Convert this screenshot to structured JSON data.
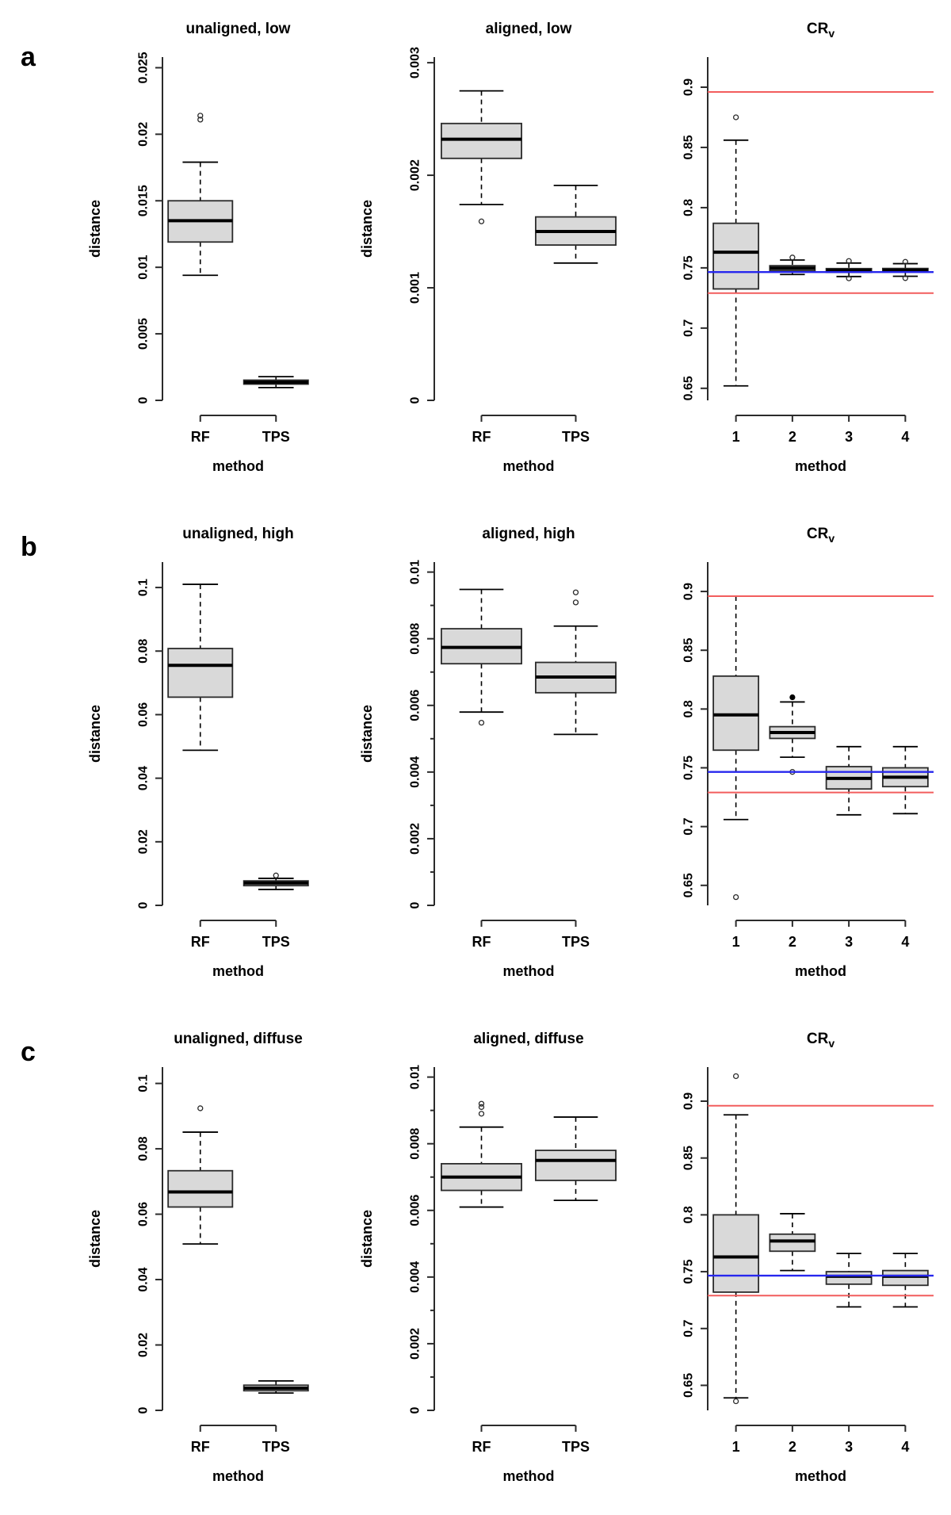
{
  "style": {
    "background": "#ffffff",
    "box_fill": "#d9d9d9",
    "box_border": "#2b2b2b",
    "median_color": "#000000",
    "axis_color": "#2b2b2b",
    "text_color": "#000000",
    "red": "#f25d5d",
    "blue": "#2727ee"
  },
  "row_labels": [
    "a",
    "b",
    "c"
  ],
  "chart_data": [
    {
      "type": "boxplot",
      "row": "a",
      "title": "unaligned, low",
      "title_sub": "",
      "ylabel": "distance",
      "xlabel": "method",
      "ylim": [
        0,
        0.0258
      ],
      "yticks": [
        0,
        0.005,
        0.01,
        0.015,
        0.02,
        0.025
      ],
      "ytick_labels": [
        "0",
        "0.005",
        "0.01",
        "0.015",
        "0.02",
        "0.025"
      ],
      "minor_yticks": [],
      "categories": [
        "RF",
        "TPS"
      ],
      "boxes": [
        {
          "category": "RF",
          "whisker_low": 0.0094,
          "q1": 0.0119,
          "median": 0.0135,
          "q3": 0.015,
          "whisker_high": 0.0179,
          "outliers": [
            0.0211,
            0.0214
          ],
          "filled_outliers": []
        },
        {
          "category": "TPS",
          "whisker_low": 0.00096,
          "q1": 0.00122,
          "median": 0.00136,
          "q3": 0.00152,
          "whisker_high": 0.00178,
          "outliers": [],
          "filled_outliers": []
        }
      ],
      "ref_lines": []
    },
    {
      "type": "boxplot",
      "row": "a",
      "title": "aligned, low",
      "title_sub": "",
      "ylabel": "distance",
      "xlabel": "method",
      "ylim": [
        0,
        0.00305
      ],
      "yticks": [
        0,
        0.001,
        0.002,
        0.003
      ],
      "ytick_labels": [
        "0",
        "0.001",
        "0.002",
        "0.003"
      ],
      "minor_yticks": [],
      "categories": [
        "RF",
        "TPS"
      ],
      "boxes": [
        {
          "category": "RF",
          "whisker_low": 0.00174,
          "q1": 0.00215,
          "median": 0.00232,
          "q3": 0.00246,
          "whisker_high": 0.00275,
          "outliers": [
            0.00159
          ],
          "filled_outliers": []
        },
        {
          "category": "TPS",
          "whisker_low": 0.00122,
          "q1": 0.00138,
          "median": 0.0015,
          "q3": 0.00163,
          "whisker_high": 0.00191,
          "outliers": [],
          "filled_outliers": []
        }
      ],
      "ref_lines": []
    },
    {
      "type": "boxplot",
      "row": "a",
      "title": "CR",
      "title_sub": "v",
      "ylabel": "",
      "xlabel": "method",
      "ylim": [
        0.64,
        0.925
      ],
      "yticks": [
        0.65,
        0.7,
        0.75,
        0.8,
        0.85,
        0.9
      ],
      "ytick_labels": [
        "0.65",
        "0.7",
        "0.75",
        "0.8",
        "0.85",
        "0.9"
      ],
      "minor_yticks": [],
      "categories": [
        "1",
        "2",
        "3",
        "4"
      ],
      "boxes": [
        {
          "category": "1",
          "whisker_low": 0.652,
          "q1": 0.7325,
          "median": 0.763,
          "q3": 0.787,
          "whisker_high": 0.856,
          "outliers": [
            0.875
          ],
          "filled_outliers": []
        },
        {
          "category": "2",
          "whisker_low": 0.7445,
          "q1": 0.7478,
          "median": 0.7498,
          "q3": 0.7518,
          "whisker_high": 0.7565,
          "outliers": [
            0.7586
          ],
          "filled_outliers": []
        },
        {
          "category": "3",
          "whisker_low": 0.7428,
          "q1": 0.7463,
          "median": 0.7478,
          "q3": 0.7494,
          "whisker_high": 0.754,
          "outliers": [
            0.7557,
            0.7413
          ],
          "filled_outliers": []
        },
        {
          "category": "4",
          "whisker_low": 0.743,
          "q1": 0.7465,
          "median": 0.748,
          "q3": 0.7495,
          "whisker_high": 0.7535,
          "outliers": [
            0.755,
            0.7415
          ],
          "filled_outliers": []
        }
      ],
      "ref_lines": [
        {
          "value": 0.896,
          "color": "red"
        },
        {
          "value": 0.7465,
          "color": "blue"
        },
        {
          "value": 0.729,
          "color": "red"
        }
      ]
    },
    {
      "type": "boxplot",
      "row": "b",
      "title": "unaligned, high",
      "title_sub": "",
      "ylabel": "distance",
      "xlabel": "method",
      "ylim": [
        0,
        0.108
      ],
      "yticks": [
        0,
        0.02,
        0.04,
        0.06,
        0.08,
        0.1
      ],
      "ytick_labels": [
        "0",
        "0.02",
        "0.04",
        "0.06",
        "0.08",
        "0.1"
      ],
      "minor_yticks": [],
      "categories": [
        "RF",
        "TPS"
      ],
      "boxes": [
        {
          "category": "RF",
          "whisker_low": 0.0488,
          "q1": 0.0655,
          "median": 0.0755,
          "q3": 0.0808,
          "whisker_high": 0.101,
          "outliers": [],
          "filled_outliers": []
        },
        {
          "category": "TPS",
          "whisker_low": 0.005,
          "q1": 0.0062,
          "median": 0.007,
          "q3": 0.0077,
          "whisker_high": 0.0085,
          "outliers": [
            0.0094
          ],
          "filled_outliers": []
        }
      ],
      "ref_lines": []
    },
    {
      "type": "boxplot",
      "row": "b",
      "title": "aligned, high",
      "title_sub": "",
      "ylabel": "distance",
      "xlabel": "method",
      "ylim": [
        0,
        0.0103
      ],
      "yticks": [
        0,
        0.002,
        0.004,
        0.006,
        0.008,
        0.01
      ],
      "ytick_labels": [
        "0",
        "0.002",
        "0.004",
        "0.006",
        "0.008",
        "0.01"
      ],
      "minor_yticks": [
        0.001,
        0.003,
        0.005,
        0.007,
        0.009
      ],
      "categories": [
        "RF",
        "TPS"
      ],
      "boxes": [
        {
          "category": "RF",
          "whisker_low": 0.0058,
          "q1": 0.00725,
          "median": 0.00774,
          "q3": 0.0083,
          "whisker_high": 0.00948,
          "outliers": [
            0.00548
          ],
          "filled_outliers": []
        },
        {
          "category": "TPS",
          "whisker_low": 0.00513,
          "q1": 0.00638,
          "median": 0.00685,
          "q3": 0.00729,
          "whisker_high": 0.00838,
          "outliers": [
            0.00909,
            0.00939
          ],
          "filled_outliers": []
        }
      ],
      "ref_lines": []
    },
    {
      "type": "boxplot",
      "row": "b",
      "title": "CR",
      "title_sub": "v",
      "ylabel": "",
      "xlabel": "method",
      "ylim": [
        0.633,
        0.925
      ],
      "yticks": [
        0.65,
        0.7,
        0.75,
        0.8,
        0.85,
        0.9
      ],
      "ytick_labels": [
        "0.65",
        "0.7",
        "0.75",
        "0.8",
        "0.85",
        "0.9"
      ],
      "minor_yticks": [],
      "categories": [
        "1",
        "2",
        "3",
        "4"
      ],
      "boxes": [
        {
          "category": "1",
          "whisker_low": 0.706,
          "q1": 0.765,
          "median": 0.795,
          "q3": 0.828,
          "whisker_high": 0.896,
          "outliers": [
            0.64
          ],
          "filled_outliers": []
        },
        {
          "category": "2",
          "whisker_low": 0.759,
          "q1": 0.775,
          "median": 0.78,
          "q3": 0.785,
          "whisker_high": 0.806,
          "outliers": [
            0.7465
          ],
          "filled_outliers": [
            0.81
          ]
        },
        {
          "category": "3",
          "whisker_low": 0.71,
          "q1": 0.732,
          "median": 0.741,
          "q3": 0.751,
          "whisker_high": 0.768,
          "outliers": [],
          "filled_outliers": []
        },
        {
          "category": "4",
          "whisker_low": 0.711,
          "q1": 0.734,
          "median": 0.742,
          "q3": 0.75,
          "whisker_high": 0.768,
          "outliers": [],
          "filled_outliers": []
        }
      ],
      "ref_lines": [
        {
          "value": 0.896,
          "color": "red"
        },
        {
          "value": 0.7465,
          "color": "blue"
        },
        {
          "value": 0.729,
          "color": "red"
        }
      ]
    },
    {
      "type": "boxplot",
      "row": "c",
      "title": "unaligned, diffuse",
      "title_sub": "",
      "ylabel": "distance",
      "xlabel": "method",
      "ylim": [
        0,
        0.105
      ],
      "yticks": [
        0,
        0.02,
        0.04,
        0.06,
        0.08,
        0.1
      ],
      "ytick_labels": [
        "0",
        "0.02",
        "0.04",
        "0.06",
        "0.08",
        "0.1"
      ],
      "minor_yticks": [],
      "categories": [
        "RF",
        "TPS"
      ],
      "boxes": [
        {
          "category": "RF",
          "whisker_low": 0.0509,
          "q1": 0.0622,
          "median": 0.0668,
          "q3": 0.0733,
          "whisker_high": 0.0851,
          "outliers": [
            0.0924
          ],
          "filled_outliers": []
        },
        {
          "category": "TPS",
          "whisker_low": 0.0053,
          "q1": 0.006,
          "median": 0.0068,
          "q3": 0.0077,
          "whisker_high": 0.009,
          "outliers": [],
          "filled_outliers": []
        }
      ],
      "ref_lines": []
    },
    {
      "type": "boxplot",
      "row": "c",
      "title": "aligned, diffuse",
      "title_sub": "",
      "ylabel": "distance",
      "xlabel": "method",
      "ylim": [
        0,
        0.0103
      ],
      "yticks": [
        0,
        0.002,
        0.004,
        0.006,
        0.008,
        0.01
      ],
      "ytick_labels": [
        "0",
        "0.002",
        "0.004",
        "0.006",
        "0.008",
        "0.01"
      ],
      "minor_yticks": [
        0.001,
        0.003,
        0.005,
        0.007,
        0.009
      ],
      "categories": [
        "RF",
        "TPS"
      ],
      "boxes": [
        {
          "category": "RF",
          "whisker_low": 0.0061,
          "q1": 0.0066,
          "median": 0.007,
          "q3": 0.0074,
          "whisker_high": 0.0085,
          "outliers": [
            0.0089,
            0.0091,
            0.0092
          ],
          "filled_outliers": []
        },
        {
          "category": "TPS",
          "whisker_low": 0.0063,
          "q1": 0.0069,
          "median": 0.0075,
          "q3": 0.0078,
          "whisker_high": 0.0088,
          "outliers": [],
          "filled_outliers": []
        }
      ],
      "ref_lines": []
    },
    {
      "type": "boxplot",
      "row": "c",
      "title": "CR",
      "title_sub": "v",
      "ylabel": "",
      "xlabel": "method",
      "ylim": [
        0.628,
        0.93
      ],
      "yticks": [
        0.65,
        0.7,
        0.75,
        0.8,
        0.85,
        0.9
      ],
      "ytick_labels": [
        "0.65",
        "0.7",
        "0.75",
        "0.8",
        "0.85",
        "0.9"
      ],
      "minor_yticks": [],
      "categories": [
        "1",
        "2",
        "3",
        "4"
      ],
      "boxes": [
        {
          "category": "1",
          "whisker_low": 0.639,
          "q1": 0.732,
          "median": 0.763,
          "q3": 0.8,
          "whisker_high": 0.888,
          "outliers": [
            0.922,
            0.636
          ],
          "filled_outliers": []
        },
        {
          "category": "2",
          "whisker_low": 0.751,
          "q1": 0.768,
          "median": 0.777,
          "q3": 0.783,
          "whisker_high": 0.801,
          "outliers": [],
          "filled_outliers": []
        },
        {
          "category": "3",
          "whisker_low": 0.719,
          "q1": 0.739,
          "median": 0.746,
          "q3": 0.75,
          "whisker_high": 0.766,
          "outliers": [],
          "filled_outliers": []
        },
        {
          "category": "4",
          "whisker_low": 0.719,
          "q1": 0.738,
          "median": 0.746,
          "q3": 0.751,
          "whisker_high": 0.766,
          "outliers": [],
          "filled_outliers": []
        }
      ],
      "ref_lines": [
        {
          "value": 0.896,
          "color": "red"
        },
        {
          "value": 0.7465,
          "color": "blue"
        },
        {
          "value": 0.729,
          "color": "red"
        }
      ]
    }
  ]
}
